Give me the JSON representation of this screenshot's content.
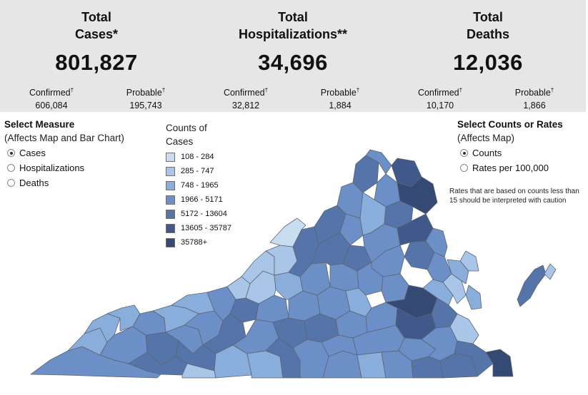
{
  "summary": {
    "cases": {
      "title": "Total\nCases*",
      "value": "801,827",
      "confirmed_label": "Confirmed",
      "confirmed": "606,084",
      "probable_label": "Probable",
      "probable": "195,743"
    },
    "hospitalizations": {
      "title": "Total\nHospitalizations**",
      "value": "34,696",
      "confirmed_label": "Confirmed",
      "confirmed": "32,812",
      "probable_label": "Probable",
      "probable": "1,884"
    },
    "deaths": {
      "title": "Total\nDeaths",
      "value": "12,036",
      "confirmed_label": "Confirmed",
      "confirmed": "10,170",
      "probable_label": "Probable",
      "probable": "1,866"
    },
    "dagger": "†"
  },
  "measure": {
    "title": "Select Measure",
    "subtitle": "(Affects Map and Bar Chart)",
    "options": [
      "Cases",
      "Hospitalizations",
      "Deaths"
    ],
    "selected": "Cases"
  },
  "legend": {
    "title": "Counts of\nCases",
    "items": [
      {
        "label": "108 - 284",
        "color": "#c9ddf0"
      },
      {
        "label": "285 - 747",
        "color": "#a9c6e8"
      },
      {
        "label": "748 - 1965",
        "color": "#8aaedc"
      },
      {
        "label": "1966 - 5171",
        "color": "#6b8fc6"
      },
      {
        "label": "5172 - 13604",
        "color": "#5575aa"
      },
      {
        "label": "13605 - 35787",
        "color": "#41598a"
      },
      {
        "label": "35788+",
        "color": "#344a72"
      }
    ]
  },
  "counts_rates": {
    "title": "Select Counts or Rates",
    "subtitle": "(Affects Map)",
    "options": [
      "Counts",
      "Rates per 100,000"
    ],
    "selected": "Counts"
  },
  "note": "Rates that are based on counts less than 15 should be interpreted with caution",
  "colors": {
    "border": "#5d6470",
    "summary_bg": "#e6e6e6"
  }
}
